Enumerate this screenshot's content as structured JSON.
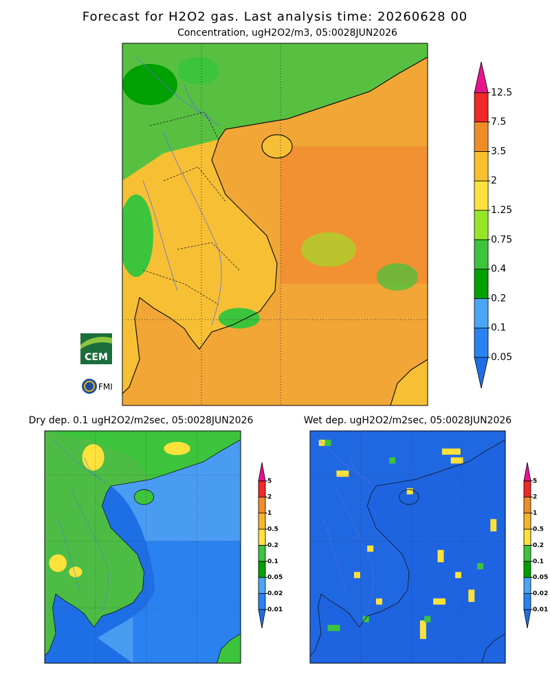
{
  "header": {
    "title": "Forecast for H2O2 gas. Last analysis time: 20260628 00"
  },
  "logos": {
    "cem": "CEM",
    "fmi": "FMI"
  },
  "panels": [
    {
      "title": "Concentration, ugH2O2/m3, 05:0028JUN2026",
      "colorbar": {
        "levels": [
          0.05,
          0.1,
          0.2,
          0.4,
          0.75,
          1.25,
          2,
          3.5,
          7.5,
          12.5
        ],
        "colors": [
          "#1e6ee6",
          "#2a82f0",
          "#4aa6f5",
          "#00a000",
          "#3cc43c",
          "#96e628",
          "#fde23c",
          "#f7c02c",
          "#f08c28",
          "#f02828",
          "#e6148c"
        ]
      }
    },
    {
      "title": "Dry dep. 0.1 ugH2O2/m2sec, 05:0028JUN2026",
      "colorbar": {
        "levels": [
          0.01,
          0.02,
          0.05,
          0.1,
          0.2,
          0.5,
          1,
          2,
          5
        ],
        "colors": [
          "#1e6ee6",
          "#2a82f0",
          "#4aa6f5",
          "#00a000",
          "#3cc43c",
          "#fde23c",
          "#f7b42c",
          "#f08c28",
          "#f02828",
          "#e6148c"
        ]
      }
    },
    {
      "title": "Wet dep. ugH2O2/m2sec, 05:0028JUN2026",
      "colorbar": {
        "levels": [
          0.01,
          0.02,
          0.05,
          0.1,
          0.2,
          0.5,
          1,
          2,
          5
        ],
        "colors": [
          "#1e6ee6",
          "#2a82f0",
          "#4aa6f5",
          "#00a000",
          "#3cc43c",
          "#fde23c",
          "#f7b42c",
          "#f08c28",
          "#f02828",
          "#e6148c"
        ]
      }
    }
  ]
}
